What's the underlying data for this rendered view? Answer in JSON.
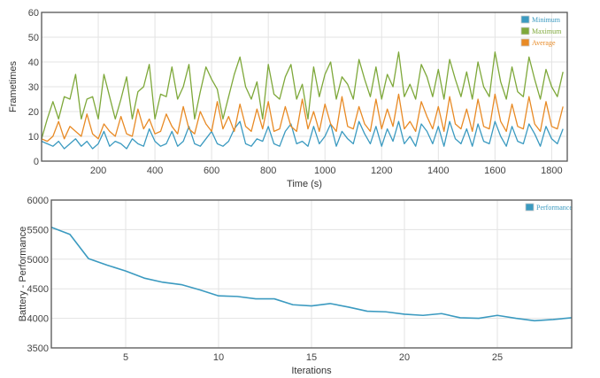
{
  "chart_data": [
    {
      "type": "line",
      "xlabel": "Time (s)",
      "ylabel": "Frametimes",
      "xlim": [
        0,
        1855
      ],
      "ylim": [
        0,
        60
      ],
      "xticks": [
        200,
        400,
        600,
        800,
        1000,
        1200,
        1400,
        1600,
        1800
      ],
      "yticks": [
        0,
        10,
        20,
        30,
        40,
        50,
        60
      ],
      "grid": true,
      "legend_position": "top-right",
      "x_start": 0,
      "x_step": 20,
      "series": [
        {
          "name": "Minimum",
          "color": "#3b9ac0",
          "values": [
            8,
            7,
            6,
            8,
            5,
            7,
            9,
            6,
            8,
            5,
            7,
            12,
            6,
            8,
            7,
            5,
            9,
            7,
            6,
            13,
            8,
            6,
            7,
            12,
            6,
            8,
            14,
            7,
            6,
            9,
            12,
            7,
            6,
            8,
            13,
            16,
            7,
            6,
            9,
            8,
            14,
            7,
            6,
            12,
            15,
            7,
            8,
            6,
            14,
            7,
            10,
            15,
            6,
            12,
            9,
            7,
            16,
            11,
            7,
            14,
            6,
            13,
            8,
            16,
            7,
            10,
            6,
            15,
            12,
            7,
            14,
            6,
            16,
            9,
            7,
            13,
            6,
            15,
            8,
            7,
            16,
            10,
            6,
            14,
            8,
            7,
            15,
            11,
            6,
            14,
            9,
            7,
            13
          ]
        },
        {
          "name": "Maximum",
          "color": "#7ea83a",
          "values": [
            9,
            17,
            24,
            17,
            26,
            25,
            35,
            17,
            25,
            26,
            17,
            35,
            26,
            17,
            25,
            34,
            17,
            28,
            30,
            39,
            17,
            27,
            26,
            38,
            25,
            30,
            39,
            17,
            28,
            38,
            33,
            29,
            17,
            26,
            35,
            42,
            30,
            25,
            32,
            17,
            39,
            27,
            25,
            34,
            39,
            25,
            31,
            17,
            38,
            26,
            35,
            40,
            25,
            34,
            31,
            25,
            41,
            33,
            26,
            38,
            25,
            35,
            30,
            44,
            26,
            31,
            25,
            39,
            34,
            26,
            37,
            25,
            41,
            33,
            26,
            36,
            25,
            40,
            30,
            26,
            44,
            32,
            25,
            38,
            28,
            26,
            42,
            33,
            25,
            37,
            30,
            26,
            36
          ]
        },
        {
          "name": "Average",
          "color": "#e88a25",
          "values": [
            9,
            8,
            10,
            16,
            9,
            14,
            12,
            10,
            19,
            11,
            9,
            15,
            12,
            10,
            18,
            11,
            10,
            21,
            13,
            17,
            11,
            12,
            19,
            14,
            11,
            22,
            13,
            11,
            20,
            15,
            12,
            24,
            13,
            18,
            12,
            23,
            14,
            12,
            21,
            13,
            24,
            12,
            13,
            22,
            14,
            12,
            25,
            13,
            20,
            12,
            23,
            15,
            12,
            26,
            14,
            13,
            22,
            15,
            12,
            25,
            13,
            21,
            14,
            27,
            13,
            16,
            12,
            24,
            18,
            13,
            22,
            12,
            26,
            15,
            13,
            21,
            12,
            25,
            14,
            13,
            27,
            16,
            12,
            23,
            14,
            13,
            26,
            15,
            12,
            24,
            14,
            13,
            22
          ]
        }
      ]
    },
    {
      "type": "line",
      "xlabel": "Iterations",
      "ylabel": "Battery - Performance",
      "xlim": [
        1,
        29
      ],
      "ylim": [
        3500,
        6000
      ],
      "xticks": [
        5,
        10,
        15,
        20,
        25
      ],
      "yticks": [
        3500,
        4000,
        4500,
        5000,
        5500,
        6000
      ],
      "grid": true,
      "legend_position": "top-right",
      "x": [
        1,
        2,
        3,
        4,
        5,
        6,
        7,
        8,
        9,
        10,
        11,
        12,
        13,
        14,
        15,
        16,
        17,
        18,
        19,
        20,
        21,
        22,
        23,
        24,
        25,
        26,
        27,
        28,
        29
      ],
      "series": [
        {
          "name": "Performance",
          "color": "#3b9ac0",
          "values": [
            5540,
            5420,
            5010,
            4900,
            4800,
            4680,
            4610,
            4570,
            4480,
            4380,
            4370,
            4330,
            4330,
            4230,
            4210,
            4250,
            4190,
            4120,
            4110,
            4070,
            4050,
            4080,
            4010,
            4000,
            4050,
            4000,
            3960,
            3980,
            4010
          ]
        }
      ]
    }
  ]
}
